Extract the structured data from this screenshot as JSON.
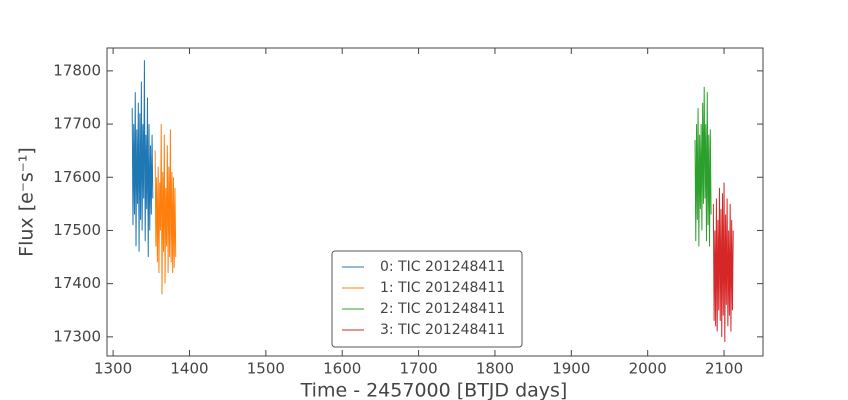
{
  "chart_data": {
    "type": "line",
    "xlabel": "Time - 2457000 [BTJD days]",
    "ylabel": "Flux [e⁻s⁻¹]",
    "xlim": [
      1292,
      2151
    ],
    "ylim": [
      17264,
      17843
    ],
    "xticks": [
      1300,
      1400,
      1500,
      1600,
      1700,
      1800,
      1900,
      2000,
      2100
    ],
    "yticks": [
      17300,
      17400,
      17500,
      17600,
      17700,
      17800
    ],
    "legend": "lower center",
    "series": [
      {
        "name": "0: TIC 201248411",
        "color": "#1f77b4",
        "x": [
          1325,
          1326,
          1327,
          1328,
          1329,
          1330,
          1331,
          1332,
          1333,
          1334,
          1335,
          1336,
          1337,
          1338,
          1339,
          1340,
          1341,
          1342,
          1343,
          1344,
          1345,
          1346,
          1347,
          1348,
          1349,
          1350,
          1351,
          1352
        ],
        "values": [
          17730,
          17510,
          17700,
          17530,
          17760,
          17470,
          17690,
          17550,
          17740,
          17460,
          17720,
          17520,
          17780,
          17500,
          17700,
          17560,
          17820,
          17480,
          17680,
          17540,
          17750,
          17450,
          17700,
          17500,
          17660,
          17530,
          17680,
          17560
        ]
      },
      {
        "name": "1: TIC 201248411",
        "color": "#ff7f0e",
        "x": [
          1355,
          1356,
          1357,
          1358,
          1359,
          1360,
          1361,
          1362,
          1363,
          1364,
          1365,
          1366,
          1367,
          1368,
          1369,
          1370,
          1371,
          1372,
          1373,
          1374,
          1375,
          1376,
          1377,
          1378,
          1379,
          1380,
          1381,
          1382
        ],
        "values": [
          17650,
          17470,
          17600,
          17440,
          17620,
          17420,
          17590,
          17500,
          17700,
          17380,
          17610,
          17460,
          17680,
          17400,
          17580,
          17470,
          17660,
          17420,
          17620,
          17450,
          17690,
          17440,
          17610,
          17420,
          17600,
          17430,
          17580,
          17450
        ]
      },
      {
        "name": "2: TIC 201248411",
        "color": "#2ca02c",
        "x": [
          2062,
          2063,
          2064,
          2065,
          2066,
          2067,
          2068,
          2069,
          2070,
          2071,
          2072,
          2073,
          2074,
          2075,
          2076,
          2077,
          2078,
          2079,
          2080,
          2081,
          2082,
          2083
        ],
        "values": [
          17670,
          17480,
          17700,
          17520,
          17730,
          17470,
          17680,
          17540,
          17700,
          17500,
          17740,
          17550,
          17770,
          17560,
          17700,
          17480,
          17760,
          17510,
          17680,
          17470,
          17690,
          17530
        ]
      },
      {
        "name": "3: TIC 201248411",
        "color": "#d62728",
        "x": [
          2086,
          2087,
          2088,
          2089,
          2090,
          2091,
          2092,
          2093,
          2094,
          2095,
          2096,
          2097,
          2098,
          2099,
          2100,
          2101,
          2102,
          2103,
          2104,
          2105,
          2106,
          2107,
          2108,
          2109,
          2110,
          2111,
          2112
        ],
        "values": [
          17550,
          17330,
          17500,
          17320,
          17560,
          17310,
          17520,
          17350,
          17580,
          17330,
          17540,
          17300,
          17570,
          17340,
          17590,
          17290,
          17530,
          17360,
          17560,
          17320,
          17500,
          17340,
          17550,
          17310,
          17520,
          17350,
          17500
        ]
      }
    ]
  }
}
